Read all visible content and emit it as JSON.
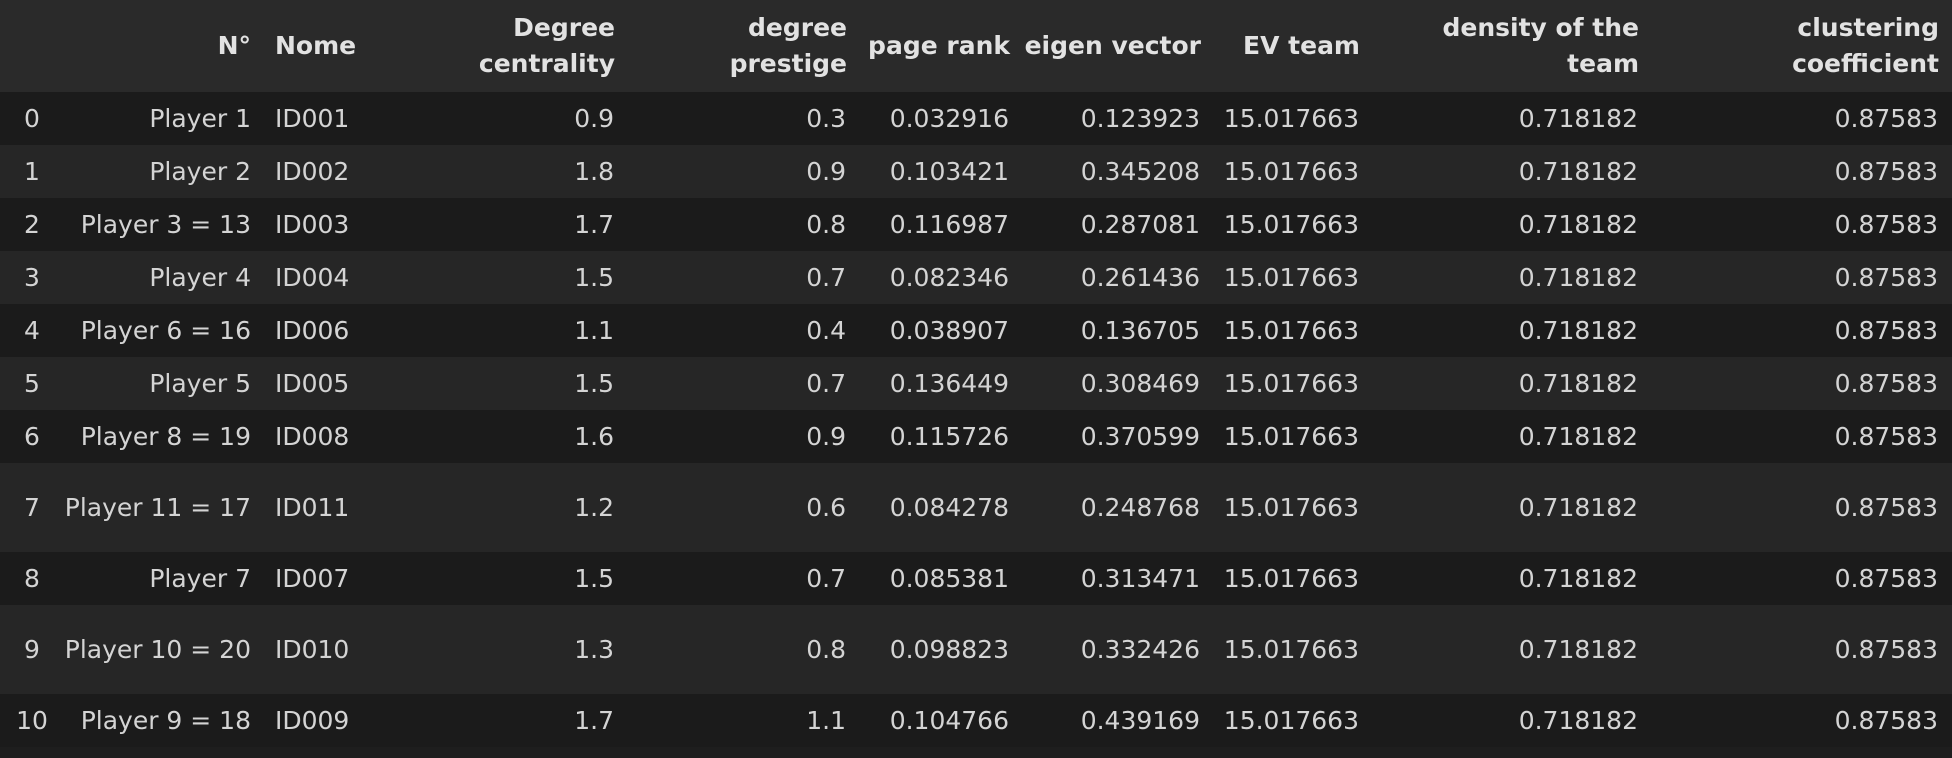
{
  "table": {
    "columns": [
      {
        "key": "index",
        "label": ""
      },
      {
        "key": "n",
        "label": "N°"
      },
      {
        "key": "nome",
        "label": "Nome"
      },
      {
        "key": "degree_centrality",
        "label": "Degree centrality"
      },
      {
        "key": "degree_prestige",
        "label": "degree prestige"
      },
      {
        "key": "page_rank",
        "label": "page rank"
      },
      {
        "key": "eigen_vector",
        "label": "eigen vector"
      },
      {
        "key": "ev_team",
        "label": "EV team"
      },
      {
        "key": "density_team",
        "label": "density of the team"
      },
      {
        "key": "clustering",
        "label": "clustering coefficient"
      }
    ],
    "rows": [
      {
        "index": "0",
        "n": "Player 1",
        "nome": "ID001",
        "degree_centrality": "0.9",
        "degree_prestige": "0.3",
        "page_rank": "0.032916",
        "eigen_vector": "0.123923",
        "ev_team": "15.017663",
        "density_team": "0.718182",
        "clustering": "0.87583"
      },
      {
        "index": "1",
        "n": "Player 2",
        "nome": "ID002",
        "degree_centrality": "1.8",
        "degree_prestige": "0.9",
        "page_rank": "0.103421",
        "eigen_vector": "0.345208",
        "ev_team": "15.017663",
        "density_team": "0.718182",
        "clustering": "0.87583"
      },
      {
        "index": "2",
        "n": "Player 3 = 13",
        "nome": "ID003",
        "degree_centrality": "1.7",
        "degree_prestige": "0.8",
        "page_rank": "0.116987",
        "eigen_vector": "0.287081",
        "ev_team": "15.017663",
        "density_team": "0.718182",
        "clustering": "0.87583"
      },
      {
        "index": "3",
        "n": "Player 4",
        "nome": "ID004",
        "degree_centrality": "1.5",
        "degree_prestige": "0.7",
        "page_rank": "0.082346",
        "eigen_vector": "0.261436",
        "ev_team": "15.017663",
        "density_team": "0.718182",
        "clustering": "0.87583"
      },
      {
        "index": "4",
        "n": "Player 6 = 16",
        "nome": "ID006",
        "degree_centrality": "1.1",
        "degree_prestige": "0.4",
        "page_rank": "0.038907",
        "eigen_vector": "0.136705",
        "ev_team": "15.017663",
        "density_team": "0.718182",
        "clustering": "0.87583"
      },
      {
        "index": "5",
        "n": "Player 5",
        "nome": "ID005",
        "degree_centrality": "1.5",
        "degree_prestige": "0.7",
        "page_rank": "0.136449",
        "eigen_vector": "0.308469",
        "ev_team": "15.017663",
        "density_team": "0.718182",
        "clustering": "0.87583"
      },
      {
        "index": "6",
        "n": "Player 8 = 19",
        "nome": "ID008",
        "degree_centrality": "1.6",
        "degree_prestige": "0.9",
        "page_rank": "0.115726",
        "eigen_vector": "0.370599",
        "ev_team": "15.017663",
        "density_team": "0.718182",
        "clustering": "0.87583"
      },
      {
        "index": "7",
        "n": "Player 11 = 17",
        "nome": "ID011",
        "degree_centrality": "1.2",
        "degree_prestige": "0.6",
        "page_rank": "0.084278",
        "eigen_vector": "0.248768",
        "ev_team": "15.017663",
        "density_team": "0.718182",
        "clustering": "0.87583"
      },
      {
        "index": "8",
        "n": "Player 7",
        "nome": "ID007",
        "degree_centrality": "1.5",
        "degree_prestige": "0.7",
        "page_rank": "0.085381",
        "eigen_vector": "0.313471",
        "ev_team": "15.017663",
        "density_team": "0.718182",
        "clustering": "0.87583"
      },
      {
        "index": "9",
        "n": "Player 10 = 20",
        "nome": "ID010",
        "degree_centrality": "1.3",
        "degree_prestige": "0.8",
        "page_rank": "0.098823",
        "eigen_vector": "0.332426",
        "ev_team": "15.017663",
        "density_team": "0.718182",
        "clustering": "0.87583"
      },
      {
        "index": "10",
        "n": "Player 9 = 18",
        "nome": "ID009",
        "degree_centrality": "1.7",
        "degree_prestige": "1.1",
        "page_rank": "0.104766",
        "eigen_vector": "0.439169",
        "ev_team": "15.017663",
        "density_team": "0.718182",
        "clustering": "0.87583"
      }
    ]
  }
}
